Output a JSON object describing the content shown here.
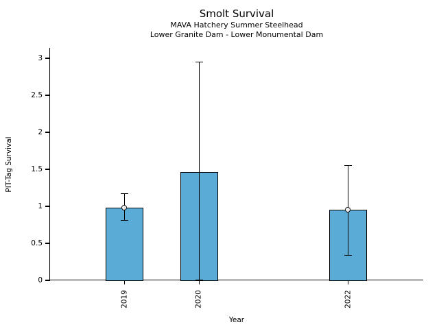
{
  "chart_data": {
    "type": "bar",
    "title": "Smolt Survival",
    "subtitle_line1": "MAVA Hatchery Summer Steelhead",
    "subtitle_line2": "Lower Granite Dam - Lower Monumental Dam",
    "xlabel": "Year",
    "ylabel": "PIT-Tag Survival",
    "categories": [
      "2019",
      "2020",
      "2022"
    ],
    "x": [
      2019,
      2020,
      2022
    ],
    "values": [
      0.98,
      1.46,
      0.95
    ],
    "error_low": [
      0.81,
      0.0,
      0.34
    ],
    "error_high": [
      1.17,
      2.95,
      1.55
    ],
    "marker_values": [
      0.98,
      null,
      0.95
    ],
    "yticks": [
      0,
      0.5,
      1,
      1.5,
      2,
      2.5,
      3
    ],
    "ytick_labels": [
      "0",
      "0.5",
      "1",
      "1.5",
      "2",
      "2.5",
      "3"
    ],
    "ylim": [
      0,
      3.14
    ],
    "xlim": [
      2018,
      2023
    ],
    "grid": false,
    "legend": null,
    "bar_color": "#5AACD7",
    "bar_edge_color": "#000000",
    "error_color": "#000000",
    "marker_style": "open-circle"
  }
}
